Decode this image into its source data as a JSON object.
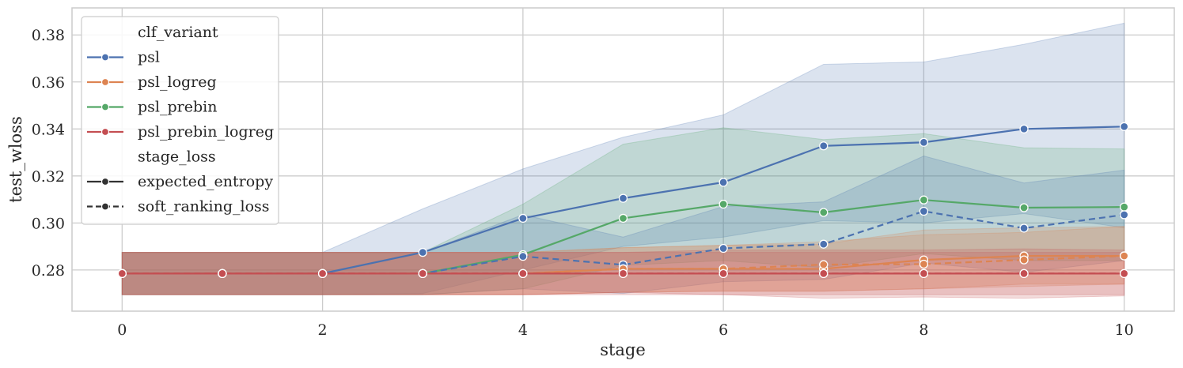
{
  "chart_data": {
    "type": "line",
    "xlabel": "stage",
    "ylabel": "test_wloss",
    "xlim": [
      -0.5,
      10.5
    ],
    "ylim": [
      0.2625,
      0.3915
    ],
    "x_ticks": [
      0,
      2,
      4,
      6,
      8,
      10
    ],
    "x_tick_labels": [
      "0",
      "2",
      "4",
      "6",
      "8",
      "10"
    ],
    "y_ticks": [
      0.28,
      0.3,
      0.32,
      0.34,
      0.36,
      0.38
    ],
    "y_tick_labels": [
      "0.28",
      "0.30",
      "0.32",
      "0.34",
      "0.36",
      "0.38"
    ],
    "grid": true,
    "legend_position": "upper-left",
    "legend": {
      "hue_title": "clf_variant",
      "style_title": "stage_loss",
      "hue_entries": [
        {
          "label": "psl",
          "color": "#4c72b0"
        },
        {
          "label": "psl_logreg",
          "color": "#dd8452"
        },
        {
          "label": "psl_prebin",
          "color": "#55a868"
        },
        {
          "label": "psl_prebin_logreg",
          "color": "#c44e52"
        }
      ],
      "style_entries": [
        {
          "label": "expected_entropy",
          "dash": "solid"
        },
        {
          "label": "soft_ranking_loss",
          "dash": "dashed"
        }
      ]
    },
    "x": [
      0,
      1,
      2,
      3,
      4,
      5,
      6,
      7,
      8,
      9,
      10
    ],
    "series": [
      {
        "name": "psl",
        "stage_loss": "expected_entropy",
        "color": "#4c72b0",
        "dash": "solid",
        "values": [
          0.2785,
          0.2785,
          0.2785,
          0.2875,
          0.302,
          0.3105,
          0.3173,
          0.3328,
          0.3343,
          0.34,
          0.341
        ],
        "ci_low": [
          0.2695,
          0.2695,
          0.2695,
          0.27,
          0.28,
          0.29,
          0.294,
          0.301,
          0.3,
          0.304,
          0.298
        ],
        "ci_high": [
          0.2875,
          0.2875,
          0.2875,
          0.306,
          0.323,
          0.3365,
          0.346,
          0.3675,
          0.3685,
          0.376,
          0.385
        ]
      },
      {
        "name": "psl_prebin",
        "stage_loss": "expected_entropy",
        "color": "#55a868",
        "dash": "solid",
        "values": [
          0.2785,
          0.2785,
          0.2785,
          0.2785,
          0.2865,
          0.302,
          0.308,
          0.3045,
          0.3098,
          0.3065,
          0.3068
        ],
        "ci_low": [
          0.2695,
          0.2695,
          0.2695,
          0.2695,
          0.272,
          0.282,
          0.284,
          0.281,
          0.287,
          0.284,
          0.284
        ],
        "ci_high": [
          0.2875,
          0.2875,
          0.2875,
          0.2875,
          0.308,
          0.3335,
          0.3405,
          0.3355,
          0.338,
          0.332,
          0.3315
        ]
      },
      {
        "name": "psl",
        "stage_loss": "soft_ranking_loss",
        "color": "#4c72b0",
        "dash": "dashed",
        "values": [
          0.2785,
          0.2785,
          0.2785,
          0.2785,
          0.2858,
          0.2822,
          0.2892,
          0.291,
          0.305,
          0.2978,
          0.3035
        ],
        "ci_low": [
          0.2695,
          0.2695,
          0.2695,
          0.2695,
          0.272,
          0.27,
          0.275,
          0.276,
          0.283,
          0.279,
          0.284
        ],
        "ci_high": [
          0.2875,
          0.2875,
          0.2875,
          0.2875,
          0.3035,
          0.294,
          0.307,
          0.309,
          0.3285,
          0.317,
          0.3225
        ]
      },
      {
        "name": "psl_logreg",
        "stage_loss": "expected_entropy",
        "color": "#dd8452",
        "dash": "solid",
        "values": [
          0.2785,
          0.2785,
          0.2785,
          0.2785,
          0.2785,
          0.2805,
          0.2805,
          0.2805,
          0.2843,
          0.286,
          0.286
        ],
        "ci_low": [
          0.2695,
          0.2695,
          0.2695,
          0.2695,
          0.2695,
          0.2705,
          0.271,
          0.271,
          0.272,
          0.274,
          0.274
        ],
        "ci_high": [
          0.2875,
          0.2875,
          0.2875,
          0.2875,
          0.2875,
          0.2895,
          0.2905,
          0.291,
          0.297,
          0.298,
          0.2985
        ]
      },
      {
        "name": "psl_logreg",
        "stage_loss": "soft_ranking_loss",
        "color": "#dd8452",
        "dash": "dashed",
        "values": [
          0.2785,
          0.2785,
          0.2785,
          0.2785,
          0.2785,
          0.2805,
          0.2805,
          0.2823,
          0.2825,
          0.2843,
          0.286
        ],
        "ci_low": [
          0.2695,
          0.2695,
          0.2695,
          0.2695,
          0.2695,
          0.2705,
          0.271,
          0.271,
          0.272,
          0.273,
          0.274
        ],
        "ci_high": [
          0.2875,
          0.2875,
          0.2875,
          0.2875,
          0.2875,
          0.2895,
          0.2905,
          0.292,
          0.295,
          0.296,
          0.2985
        ]
      },
      {
        "name": "psl_prebin_logreg",
        "stage_loss": "expected_entropy",
        "color": "#c44e52",
        "dash": "solid",
        "values": [
          0.2785,
          0.2785,
          0.2785,
          0.2785,
          0.2785,
          0.2785,
          0.2785,
          0.2785,
          0.2785,
          0.2785,
          0.2785
        ],
        "ci_low": [
          0.2695,
          0.2695,
          0.2695,
          0.2695,
          0.2695,
          0.2695,
          0.2695,
          0.2695,
          0.2695,
          0.2695,
          0.2695
        ],
        "ci_high": [
          0.2875,
          0.2875,
          0.2875,
          0.2875,
          0.2875,
          0.2875,
          0.2875,
          0.2875,
          0.2875,
          0.2875,
          0.2875
        ]
      },
      {
        "name": "psl_prebin_logreg",
        "stage_loss": "soft_ranking_loss",
        "color": "#c44e52",
        "dash": "dashed",
        "values": [
          0.2785,
          0.2785,
          0.2785,
          0.2785,
          0.2785,
          0.2785,
          0.2785,
          0.2785,
          0.2785,
          0.2785,
          0.2785
        ],
        "ci_low": [
          0.2695,
          0.2695,
          0.2695,
          0.2695,
          0.2695,
          0.2705,
          0.2695,
          0.268,
          0.2685,
          0.268,
          0.269
        ],
        "ci_high": [
          0.2875,
          0.2875,
          0.2875,
          0.2875,
          0.2875,
          0.2875,
          0.2885,
          0.2885,
          0.2885,
          0.289,
          0.2885
        ]
      }
    ]
  }
}
